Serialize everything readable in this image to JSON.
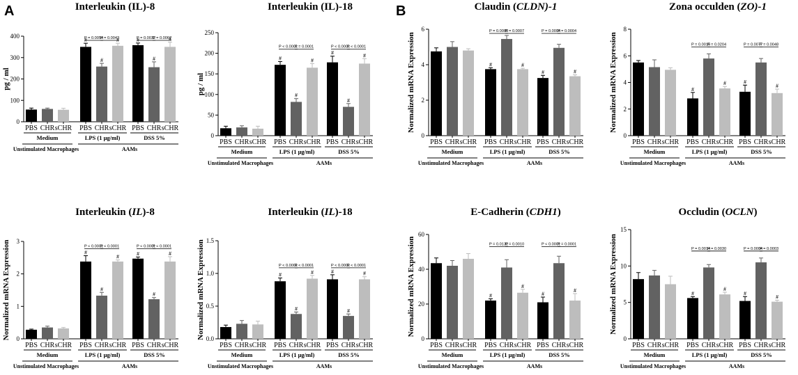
{
  "figure": {
    "panel_labels": [
      "A",
      "B"
    ],
    "categories": [
      "PBS",
      "CHR",
      "sCHR"
    ],
    "groups": [
      "Medium",
      "LPS (1 μg/ml)",
      "DSS 5%"
    ],
    "supergroups": [
      "Unstimulated Macrophages",
      "AAMs"
    ],
    "significance_marker": "#",
    "bar_colors": [
      "#000000",
      "#626262",
      "#bdbdbd"
    ]
  },
  "chart_data": [
    {
      "type": "bar",
      "panel": "A",
      "title": "Interleukin (IL)-8",
      "ylabel": "pg / ml",
      "ylim": [
        0,
        400
      ],
      "yticks": [
        "0",
        "100",
        "200",
        "300",
        "400"
      ],
      "values": [
        57,
        60,
        56,
        350,
        258,
        355,
        358,
        255,
        350
      ],
      "errors": [
        7,
        4,
        7,
        17,
        15,
        12,
        10,
        25,
        22
      ],
      "hash": [
        false,
        false,
        false,
        true,
        true,
        true,
        true,
        true,
        true
      ],
      "pvalues": [
        "P = 0.0054",
        "P = 0.0043",
        "P = 0.0032",
        "P = 0.0067"
      ]
    },
    {
      "type": "bar",
      "panel": "A",
      "title": "Interleukin (IL)-18",
      "ylabel": "pg / ml",
      "ylim": [
        0,
        250
      ],
      "yticks": [
        "0",
        "50",
        "100",
        "150",
        "200",
        "250"
      ],
      "values": [
        18,
        20,
        17,
        172,
        82,
        165,
        178,
        70,
        175
      ],
      "errors": [
        5,
        4,
        6,
        8,
        8,
        10,
        15,
        8,
        12
      ],
      "hash": [
        false,
        false,
        false,
        true,
        true,
        true,
        true,
        true,
        true
      ],
      "pvalues": [
        "P < 0.0001",
        "P = 0.0001",
        "P < 0.0001",
        "P < 0.0001"
      ]
    },
    {
      "type": "bar",
      "panel": "B",
      "title": "Claudin (CLDN)-1",
      "ylabel": "Normalized mRNA Expression",
      "ylim": [
        0,
        6
      ],
      "yticks": [
        "0",
        "2",
        "4",
        "6"
      ],
      "values": [
        4.75,
        5.0,
        4.8,
        3.75,
        5.45,
        3.75,
        3.25,
        4.95,
        3.35
      ],
      "errors": [
        0.2,
        0.3,
        0.1,
        0.08,
        0.2,
        0.05,
        0.15,
        0.2,
        0.08
      ],
      "hash": [
        false,
        false,
        false,
        true,
        false,
        true,
        true,
        false,
        true
      ],
      "pvalues": [
        "P = 0.0086",
        "P = 0.0007",
        "P = 0.0004",
        "P = 0.0004"
      ]
    },
    {
      "type": "bar",
      "panel": "B",
      "title": "Zona occulden (ZO)-1",
      "ylabel": "Normalized mRNA Expression",
      "ylim": [
        0,
        8
      ],
      "yticks": [
        "0",
        "2",
        "4",
        "6",
        "8"
      ],
      "values": [
        5.5,
        5.15,
        4.95,
        2.8,
        5.8,
        3.55,
        3.3,
        5.5,
        3.2
      ],
      "errors": [
        0.15,
        0.55,
        0.15,
        0.45,
        0.35,
        0.15,
        0.5,
        0.3,
        0.3
      ],
      "hash": [
        false,
        false,
        false,
        true,
        false,
        true,
        true,
        false,
        true
      ],
      "pvalues": [
        "P = 0.0015",
        "P = 0.0204",
        "P = 0.0077",
        "P = 0.0048"
      ]
    },
    {
      "type": "bar",
      "panel": "A",
      "title": "Interleukin (IL)-8",
      "ylabel": "Normalized mRNA Expression",
      "ylim": [
        0,
        3
      ],
      "yticks": [
        "0",
        "1",
        "2",
        "3"
      ],
      "values": [
        0.28,
        0.35,
        0.32,
        2.38,
        1.33,
        2.38,
        2.47,
        1.22,
        2.38
      ],
      "errors": [
        0.02,
        0.04,
        0.03,
        0.18,
        0.1,
        0.05,
        0.05,
        0.05,
        0.15
      ],
      "hash": [
        false,
        false,
        false,
        true,
        true,
        true,
        true,
        true,
        true
      ],
      "pvalues": [
        "P < 0.0001",
        "P < 0.0001",
        "P < 0.0001",
        "P < 0.0001"
      ]
    },
    {
      "type": "bar",
      "panel": "A",
      "title": "Interleukin (IL)-18",
      "ylabel": "Normalized mRNA Expression",
      "ylim": [
        0,
        1.5
      ],
      "yticks": [
        "0.0",
        "0.5",
        "1.0",
        "1.5"
      ],
      "values": [
        0.18,
        0.23,
        0.22,
        0.88,
        0.38,
        0.92,
        0.91,
        0.35,
        0.91
      ],
      "errors": [
        0.03,
        0.05,
        0.05,
        0.05,
        0.03,
        0.05,
        0.07,
        0.03,
        0.04
      ],
      "hash": [
        false,
        false,
        false,
        true,
        true,
        true,
        true,
        true,
        true
      ],
      "pvalues": [
        "P < 0.0001",
        "P < 0.0001",
        "P < 0.0001",
        "P < 0.0001"
      ]
    },
    {
      "type": "bar",
      "panel": "B",
      "title": "E-Cadherin (CDH1)",
      "ylabel": "Normalized mRNA Expression",
      "ylim": [
        0,
        60
      ],
      "yticks": [
        "0",
        "20",
        "40",
        "60"
      ],
      "values": [
        43.5,
        42,
        46,
        22,
        41,
        26.5,
        21,
        43.5,
        22
      ],
      "errors": [
        3,
        3,
        3,
        1,
        4.5,
        2,
        3,
        4,
        4
      ],
      "hash": [
        false,
        false,
        false,
        true,
        false,
        true,
        true,
        false,
        true
      ],
      "pvalues": [
        "P = 0.0132",
        "P = 0.0010",
        "P < 0.0001",
        "P = 0.0001"
      ]
    },
    {
      "type": "bar",
      "panel": "B",
      "title": "Occludin (OCLN)",
      "ylabel": "Normalized mRNA Expression",
      "ylim": [
        0,
        15
      ],
      "yticks": [
        "0",
        "5",
        "10",
        "15"
      ],
      "values": [
        8.2,
        8.7,
        7.5,
        5.6,
        9.8,
        6.1,
        5.2,
        10.5,
        5.1
      ],
      "errors": [
        0.9,
        0.7,
        1.1,
        0.2,
        0.4,
        0.3,
        0.6,
        0.6,
        0.2
      ],
      "hash": [
        false,
        false,
        false,
        true,
        false,
        true,
        true,
        false,
        true
      ],
      "pvalues": [
        "P = 0.0014",
        "P = 0.0030",
        "P = 0.0004",
        "P = 0.0003"
      ]
    }
  ]
}
